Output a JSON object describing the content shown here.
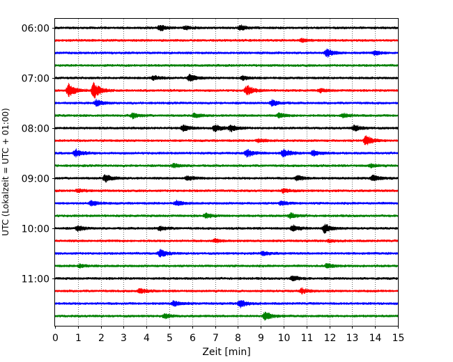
{
  "chart_data": {
    "type": "line",
    "title": "",
    "xlabel": "Zeit  [min]",
    "ylabel": "UTC (Lokalzeit = UTC + 01:00)",
    "xlim": [
      0,
      15
    ],
    "x_ticks": [
      "0",
      "1",
      "2",
      "3",
      "4",
      "5",
      "6",
      "7",
      "8",
      "9",
      "10",
      "11",
      "12",
      "13",
      "14",
      "15"
    ],
    "y_ticks": [
      "06:00",
      "07:00",
      "08:00",
      "09:00",
      "10:00",
      "11:00"
    ],
    "grid": "vertical dotted at each minute",
    "trace_interval_min": 15,
    "traces": [
      {
        "start": "06:00",
        "color": "#000000",
        "events": [
          [
            4.6,
            0.7
          ],
          [
            8.1,
            0.6
          ],
          [
            5.7,
            0.4
          ]
        ]
      },
      {
        "start": "06:15",
        "color": "#ff0000",
        "events": [
          [
            10.8,
            0.4
          ]
        ]
      },
      {
        "start": "06:30",
        "color": "#0000ff",
        "events": [
          [
            11.9,
            0.9
          ],
          [
            14.0,
            0.5
          ]
        ]
      },
      {
        "start": "06:45",
        "color": "#008000",
        "events": []
      },
      {
        "start": "07:00",
        "color": "#000000",
        "events": [
          [
            4.3,
            0.5
          ],
          [
            5.9,
            0.8
          ],
          [
            8.2,
            0.5
          ]
        ]
      },
      {
        "start": "07:15",
        "color": "#ff0000",
        "events": [
          [
            0.6,
            1.6
          ],
          [
            1.7,
            2.0
          ],
          [
            8.4,
            1.2
          ],
          [
            11.6,
            0.4
          ]
        ]
      },
      {
        "start": "07:30",
        "color": "#0000ff",
        "events": [
          [
            1.8,
            0.7
          ],
          [
            9.5,
            0.7
          ]
        ]
      },
      {
        "start": "07:45",
        "color": "#008000",
        "events": [
          [
            3.4,
            0.6
          ],
          [
            6.1,
            0.5
          ],
          [
            9.8,
            0.5
          ],
          [
            12.6,
            0.5
          ]
        ]
      },
      {
        "start": "08:00",
        "color": "#000000",
        "events": [
          [
            5.6,
            0.7
          ],
          [
            7.0,
            0.8
          ],
          [
            7.7,
            0.8
          ],
          [
            13.1,
            0.7
          ]
        ]
      },
      {
        "start": "08:15",
        "color": "#ff0000",
        "events": [
          [
            13.6,
            1.2
          ],
          [
            8.9,
            0.4
          ]
        ]
      },
      {
        "start": "08:30",
        "color": "#0000ff",
        "events": [
          [
            0.9,
            0.9
          ],
          [
            8.4,
            0.9
          ],
          [
            10.0,
            1.0
          ],
          [
            11.3,
            0.7
          ]
        ]
      },
      {
        "start": "08:45",
        "color": "#008000",
        "events": [
          [
            5.2,
            0.5
          ],
          [
            13.8,
            0.4
          ]
        ]
      },
      {
        "start": "09:00",
        "color": "#000000",
        "events": [
          [
            2.2,
            0.9
          ],
          [
            5.8,
            0.5
          ],
          [
            10.6,
            0.6
          ],
          [
            13.9,
            0.7
          ]
        ]
      },
      {
        "start": "09:15",
        "color": "#ff0000",
        "events": [
          [
            10.0,
            0.5
          ],
          [
            1.0,
            0.4
          ]
        ]
      },
      {
        "start": "09:30",
        "color": "#0000ff",
        "events": [
          [
            1.6,
            0.6
          ],
          [
            5.3,
            0.6
          ],
          [
            9.9,
            0.5
          ]
        ]
      },
      {
        "start": "09:45",
        "color": "#008000",
        "events": [
          [
            6.6,
            0.5
          ],
          [
            10.3,
            0.6
          ]
        ]
      },
      {
        "start": "10:00",
        "color": "#000000",
        "events": [
          [
            1.0,
            0.6
          ],
          [
            4.6,
            0.5
          ],
          [
            10.4,
            0.7
          ],
          [
            11.8,
            1.1
          ]
        ]
      },
      {
        "start": "10:15",
        "color": "#ff0000",
        "events": [
          [
            7.0,
            0.4
          ],
          [
            12.0,
            0.3
          ]
        ]
      },
      {
        "start": "10:30",
        "color": "#0000ff",
        "events": [
          [
            4.6,
            0.9
          ],
          [
            9.1,
            0.5
          ]
        ]
      },
      {
        "start": "10:45",
        "color": "#008000",
        "events": [
          [
            1.1,
            0.4
          ],
          [
            11.9,
            0.5
          ]
        ]
      },
      {
        "start": "11:00",
        "color": "#000000",
        "events": [
          [
            10.4,
            0.6
          ]
        ]
      },
      {
        "start": "11:15",
        "color": "#ff0000",
        "events": [
          [
            3.7,
            0.6
          ],
          [
            10.8,
            0.6
          ]
        ]
      },
      {
        "start": "11:30",
        "color": "#0000ff",
        "events": [
          [
            5.2,
            0.6
          ],
          [
            8.1,
            0.9
          ]
        ]
      },
      {
        "start": "11:45",
        "color": "#008000",
        "events": [
          [
            9.2,
            1.0
          ],
          [
            4.8,
            0.5
          ]
        ]
      }
    ]
  }
}
